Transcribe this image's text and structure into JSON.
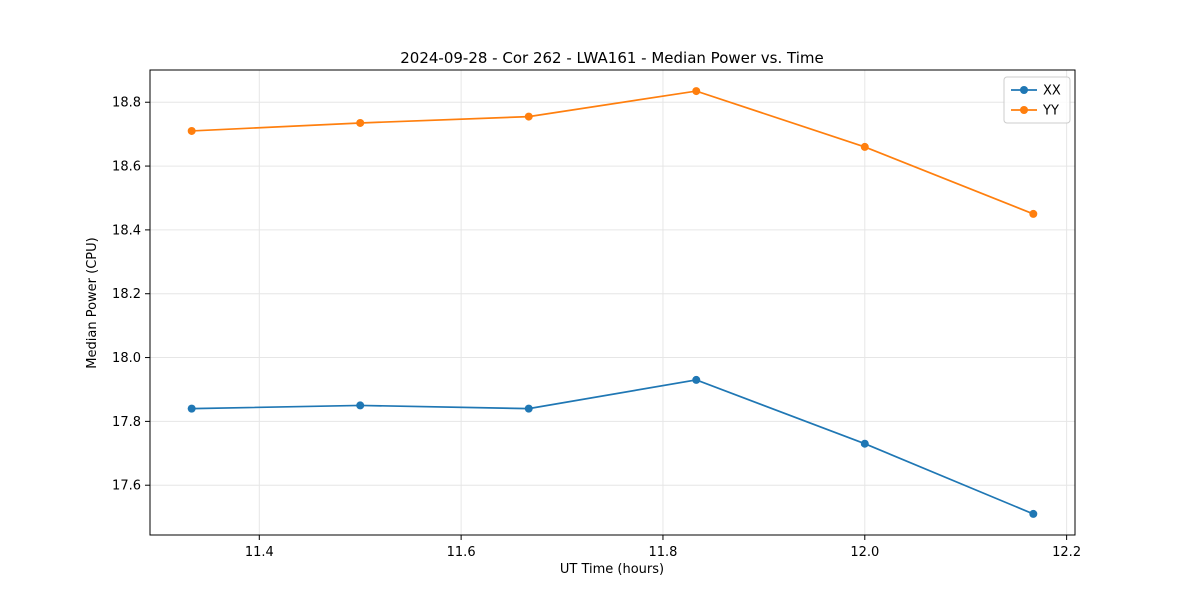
{
  "chart_data": {
    "type": "line",
    "title": "2024-09-28 - Cor 262 - LWA161 - Median Power vs. Time",
    "xlabel": "UT Time (hours)",
    "ylabel": "Median Power (CPU)",
    "xlim": [
      11.2917,
      12.2083
    ],
    "ylim": [
      17.444,
      18.901
    ],
    "xticks": [
      11.4,
      11.6,
      11.8,
      12.0,
      12.2
    ],
    "xtick_labels": [
      "11.4",
      "11.6",
      "11.8",
      "12.0",
      "12.2"
    ],
    "yticks": [
      17.6,
      17.8,
      18.0,
      18.2,
      18.4,
      18.6,
      18.8
    ],
    "ytick_labels": [
      "17.6",
      "17.8",
      "18.0",
      "18.2",
      "18.4",
      "18.6",
      "18.8"
    ],
    "grid": true,
    "grid_color": "#e6e6e6",
    "legend_position": "upper right",
    "x": [
      11.333,
      11.5,
      11.667,
      11.833,
      12.0,
      12.167
    ],
    "series": [
      {
        "name": "XX",
        "color": "#1f77b4",
        "values": [
          17.84,
          17.85,
          17.84,
          17.93,
          17.73,
          17.51
        ]
      },
      {
        "name": "YY",
        "color": "#ff7f0e",
        "values": [
          18.71,
          18.735,
          18.755,
          18.835,
          18.66,
          18.45
        ]
      }
    ]
  }
}
